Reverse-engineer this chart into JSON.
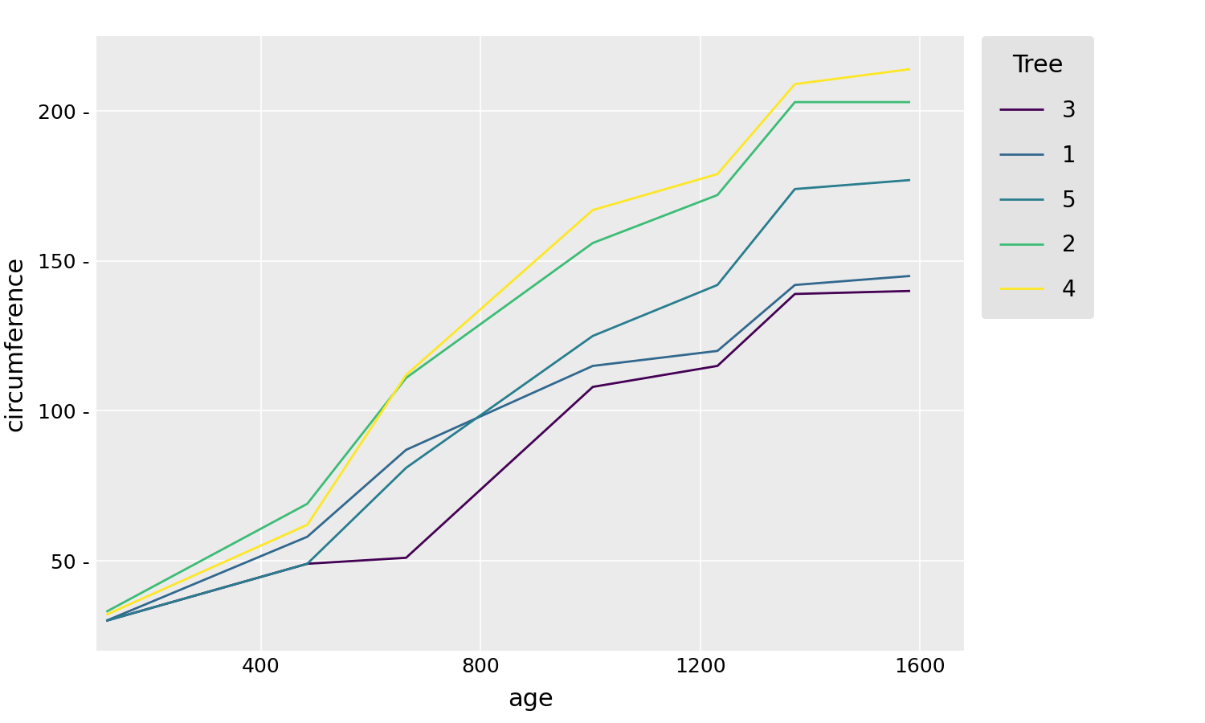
{
  "title": "",
  "xlabel": "age",
  "ylabel": "circumference",
  "legend_title": "Tree",
  "plot_background": "#EBEBEB",
  "fig_background": "#FFFFFF",
  "legend_background": "#DCDCDC",
  "grid_color": "#FFFFFF",
  "series": {
    "3": {
      "age": [
        118,
        484,
        664,
        1004,
        1231,
        1372,
        1582
      ],
      "circumference": [
        30,
        49,
        51,
        108,
        115,
        139,
        140
      ],
      "color": "#440154",
      "label": "3"
    },
    "1": {
      "age": [
        118,
        484,
        664,
        1004,
        1231,
        1372,
        1582
      ],
      "circumference": [
        30,
        58,
        87,
        115,
        120,
        142,
        145
      ],
      "color": "#31688e",
      "label": "1"
    },
    "5": {
      "age": [
        118,
        484,
        664,
        1004,
        1231,
        1372,
        1582
      ],
      "circumference": [
        30,
        49,
        81,
        125,
        142,
        174,
        177
      ],
      "color": "#287d8e",
      "label": "5"
    },
    "2": {
      "age": [
        118,
        484,
        664,
        1004,
        1231,
        1372,
        1582
      ],
      "circumference": [
        33,
        69,
        111,
        156,
        172,
        203,
        203
      ],
      "color": "#3cbc75",
      "label": "2"
    },
    "4": {
      "age": [
        118,
        484,
        664,
        1004,
        1231,
        1372,
        1582
      ],
      "circumference": [
        32,
        62,
        112,
        167,
        179,
        209,
        214
      ],
      "color": "#fde725",
      "label": "4"
    }
  },
  "series_order": [
    "3",
    "1",
    "5",
    "2",
    "4"
  ],
  "xlim": [
    100,
    1680
  ],
  "ylim": [
    20,
    225
  ],
  "xticks": [
    400,
    800,
    1200,
    1600
  ],
  "yticks": [
    50,
    100,
    150,
    200
  ],
  "line_width": 2.0,
  "tick_fontsize": 18,
  "label_fontsize": 22,
  "legend_title_fontsize": 22,
  "legend_fontsize": 20,
  "legend_labelspacing": 1.0,
  "legend_handlelength": 2.0,
  "legend_borderpad": 0.8,
  "legend_handletextpad": 0.8
}
